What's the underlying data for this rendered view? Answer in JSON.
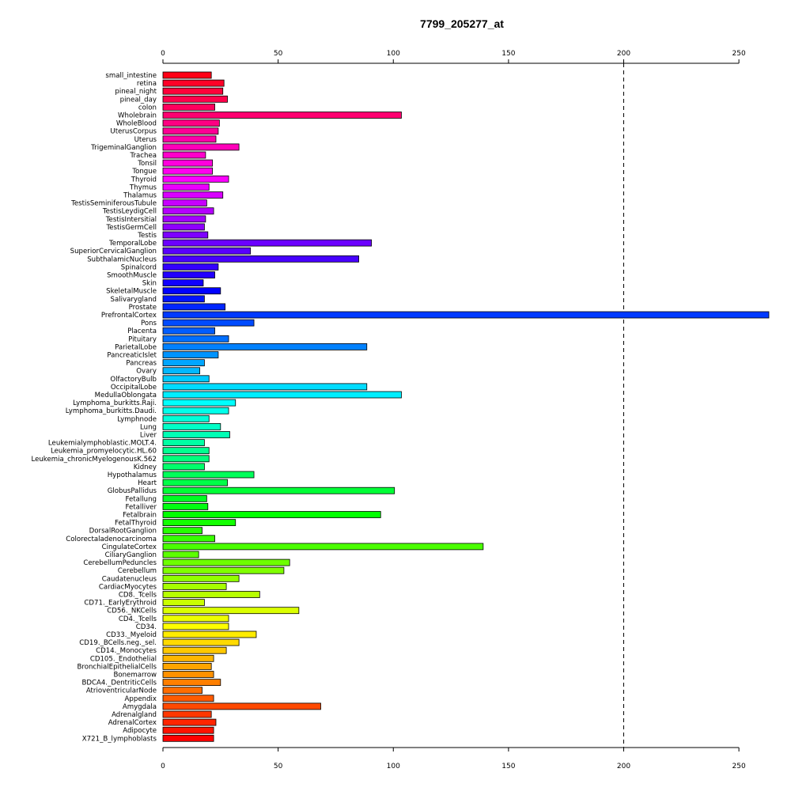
{
  "chart_data": {
    "type": "bar",
    "orientation": "horizontal",
    "title": "7799_205277_at",
    "xlabel": "",
    "ylabel": "",
    "xlim": [
      0,
      263
    ],
    "xticks": [
      0,
      50,
      100,
      150,
      200,
      250
    ],
    "reference_line": 200,
    "grid": false,
    "legend": "none",
    "categories": [
      "small_intestine",
      "retina",
      "pineal_night",
      "pineal_day",
      "colon",
      "Wholebrain",
      "WholeBlood",
      "UterusCorpus",
      "Uterus",
      "TrigeminalGanglion",
      "Trachea",
      "Tonsil",
      "Tongue",
      "Thyroid",
      "Thymus",
      "Thalamus",
      "TestisSeminiferousTubule",
      "TestisLeydigCell",
      "TestisIntersitial",
      "TestisGermCell",
      "Testis",
      "TemporalLobe",
      "SuperiorCervicalGanglion",
      "SubthalamicNucleus",
      "Spinalcord",
      "SmoothMuscle",
      "Skin",
      "SkeletalMuscle",
      "Salivarygland",
      "Prostate",
      "PrefrontalCortex",
      "Pons",
      "Placenta",
      "Pituitary",
      "ParietalLobe",
      "PancreaticIslet",
      "Pancreas",
      "Ovary",
      "OlfactoryBulb",
      "OccipitalLobe",
      "MedullaOblongata",
      "Lymphoma_burkitts.Raji.",
      "Lymphoma_burkitts.Daudi.",
      "Lymphnode",
      "Lung",
      "Liver",
      "Leukemialymphoblastic.MOLT.4.",
      "Leukemia_promyelocytic.HL.60",
      "Leukemia_chronicMyelogenousK.562",
      "Kidney",
      "Hypothalamus",
      "Heart",
      "GlobusPallidus",
      "Fetallung",
      "Fetalliver",
      "Fetalbrain",
      "FetalThyroid",
      "DorsalRootGanglion",
      "Colorectaladenocarcinoma",
      "CingulateCortex",
      "CiliaryGanglion",
      "CerebellumPeduncles",
      "Cerebellum",
      "Caudatenucleus",
      "CardiacMyocytes",
      "CD8._Tcells",
      "CD71._EarlyErythroid",
      "CD56._NKCells",
      "CD4._Tcells",
      "CD34.",
      "CD33._Myeloid",
      "CD19._BCells.neg._sel.",
      "CD14._Monocytes",
      "CD105._Endothelial",
      "BronchialEpithelialCells",
      "Bonemarrow",
      "BDCA4._DentriticCells",
      "AtrioventricularNode",
      "Appendix",
      "Amygdala",
      "Adrenalgland",
      "AdrenalCortex",
      "Adipocyte",
      "X721_B_lymphoblasts"
    ],
    "values": [
      21,
      26.5,
      26,
      28,
      22.5,
      103.5,
      24.5,
      24,
      23,
      33,
      18.5,
      21.5,
      21.5,
      28.5,
      20,
      26,
      19,
      22,
      18.5,
      18,
      19.5,
      90.5,
      38,
      85,
      24,
      22.5,
      17.5,
      25,
      18,
      27,
      264,
      39.5,
      22.5,
      28.5,
      88.5,
      24,
      18,
      16,
      20,
      88.5,
      103.5,
      31.5,
      28.5,
      20,
      25,
      29,
      18,
      20,
      20,
      18,
      39.5,
      28,
      100.5,
      19,
      19.5,
      94.5,
      31.5,
      17,
      22.5,
      139,
      15.5,
      55,
      52.5,
      33,
      27.5,
      42,
      18,
      59,
      28.5,
      28.5,
      40.5,
      33,
      27.5,
      22,
      21,
      22,
      25,
      17,
      22,
      68.5,
      21,
      23,
      22,
      22
    ]
  }
}
